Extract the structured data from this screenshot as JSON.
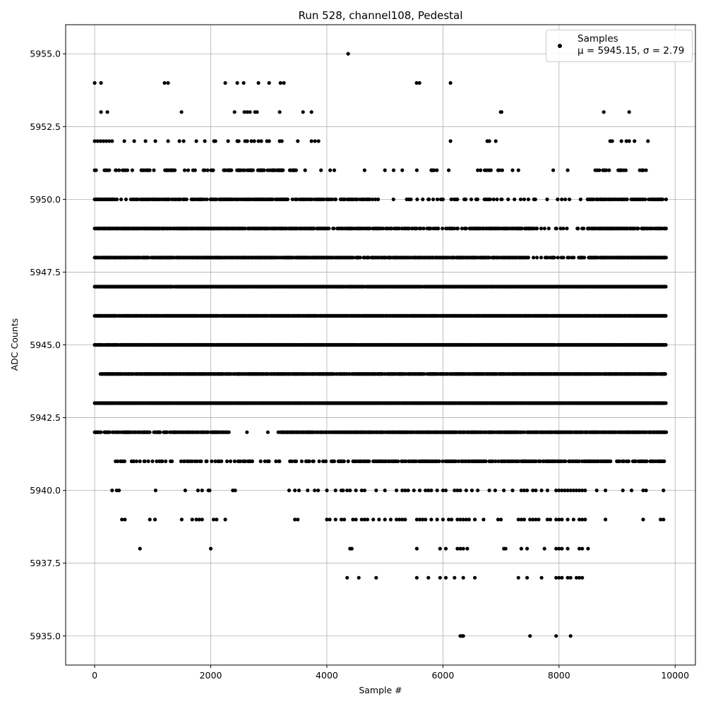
{
  "chart_data": {
    "type": "scatter",
    "title": "Run 528, channel108, Pedestal",
    "xlabel": "Sample #",
    "ylabel": "ADC Counts",
    "xlim": [
      -500,
      10350
    ],
    "ylim": [
      5934,
      5956
    ],
    "xticks": [
      "0",
      "2000",
      "4000",
      "6000",
      "8000",
      "10000"
    ],
    "xtick_values": [
      0,
      2000,
      4000,
      6000,
      8000,
      10000
    ],
    "yticks": [
      "5935.0",
      "5937.5",
      "5940.0",
      "5942.5",
      "5945.0",
      "5947.5",
      "5950.0",
      "5952.5",
      "5955.0"
    ],
    "ytick_values": [
      5935,
      5937.5,
      5940,
      5942.5,
      5945,
      5947.5,
      5950,
      5952.5,
      5955
    ],
    "grid": true,
    "legend_placement": "upper right",
    "marker_color": "#000000",
    "series": [
      {
        "name": "Samples",
        "annotation": "μ = 5945.15, σ = 2.79",
        "levels": [
          {
            "y": 5955,
            "points": [
              4367
            ]
          },
          {
            "y": 5954,
            "points": [
              0,
              110,
              1204,
              1265,
              2250,
              2457,
              2567,
              2822,
              3005,
              3200,
              3260,
              5547,
              5596,
              6131
            ]
          },
          {
            "y": 5953,
            "points": [
              110,
              219,
              1496,
              2409,
              2579,
              2628,
              2676,
              2762,
              2798,
              3187,
              3589,
              3735,
              6995,
              7010,
              8771,
              9209
            ]
          },
          {
            "y": 5952,
            "points": [
              0,
              50,
              100,
              150,
              200,
              250,
              300,
              511,
              681,
              876,
              1046,
              1265,
              1460,
              1533,
              1752,
              1898,
              2056,
              2081,
              2299,
              2457,
              2481,
              2591,
              2628,
              2700,
              2750,
              2822,
              2871,
              2968,
              3005,
              3187,
              3224,
              3499,
              3735,
              3796,
              3857,
              6131,
              6764,
              6800,
              6910,
              8881,
              8917,
              9075,
              9160,
              9209,
              9300,
              9532
            ]
          },
          {
            "y": 5951,
            "segments": [
              [
                0,
                1100,
                0.4
              ],
              [
                1200,
                1400,
                0.5
              ],
              [
                1550,
                2100,
                0.3
              ],
              [
                2200,
                3250,
                0.5
              ],
              [
                3350,
                3650,
                0.2
              ],
              [
                3900,
                4300,
                0.1
              ],
              [
                5800,
                5900,
                0.5
              ],
              [
                6600,
                6850,
                0.4
              ],
              [
                6950,
                7100,
                0.3
              ],
              [
                8600,
                9550,
                0.3
              ]
            ],
            "points": [
              4650,
              5000,
              5150,
              5300,
              5550,
              6100,
              7200,
              7300,
              7900,
              8150
            ]
          },
          {
            "y": 5950,
            "segments": [
              [
                0,
                300,
                0.9
              ],
              [
                300,
                2000,
                0.5
              ],
              [
                2000,
                3300,
                0.7
              ],
              [
                3300,
                4800,
                0.4
              ],
              [
                4800,
                6200,
                0.15
              ],
              [
                6200,
                7400,
                0.3
              ],
              [
                7400,
                8500,
                0.1
              ],
              [
                8500,
                9850,
                0.6
              ]
            ]
          },
          {
            "y": 5949,
            "segments": [
              [
                0,
                4000,
                0.8
              ],
              [
                4000,
                5500,
                0.5
              ],
              [
                5500,
                6500,
                0.35
              ],
              [
                6500,
                7500,
                0.6
              ],
              [
                7500,
                8500,
                0.25
              ],
              [
                8500,
                9850,
                0.8
              ]
            ]
          },
          {
            "y": 5948,
            "segments": [
              [
                0,
                4000,
                0.85
              ],
              [
                4000,
                5500,
                0.7
              ],
              [
                5500,
                6500,
                0.7
              ],
              [
                6500,
                7500,
                0.75
              ],
              [
                7500,
                8500,
                0.35
              ],
              [
                8500,
                9850,
                0.85
              ]
            ]
          },
          {
            "y": 5947,
            "segments": [
              [
                0,
                9850,
                0.95
              ]
            ]
          },
          {
            "y": 5946,
            "segments": [
              [
                0,
                9850,
                0.95
              ]
            ]
          },
          {
            "y": 5945,
            "segments": [
              [
                0,
                9850,
                0.95
              ]
            ]
          },
          {
            "y": 5944,
            "segments": [
              [
                100,
                9850,
                0.85
              ]
            ]
          },
          {
            "y": 5943,
            "segments": [
              [
                0,
                9850,
                0.95
              ]
            ]
          },
          {
            "y": 5942,
            "segments": [
              [
                0,
                2300,
                0.6
              ],
              [
                2300,
                3200,
                0.1
              ],
              [
                3200,
                9850,
                0.8
              ]
            ]
          },
          {
            "y": 5941,
            "segments": [
              [
                300,
                2500,
                0.2
              ],
              [
                2500,
                3900,
                0.25
              ],
              [
                3900,
                5000,
                0.45
              ],
              [
                5000,
                9850,
                0.55
              ]
            ]
          },
          {
            "y": 5940,
            "points": [
              300,
              380,
              420,
              1050,
              1560,
              1780,
              1850,
              1960,
              1980,
              2380,
              2420,
              3350,
              3450,
              3520,
              3670,
              3790,
              3850,
              4000,
              4150,
              4250,
              4280,
              4350,
              4400,
              4500,
              4600,
              4650,
              4850,
              5000,
              5200,
              5300,
              5350,
              5400,
              5500,
              5600,
              5700,
              5750,
              5800,
              5900,
              6000,
              6050,
              6200,
              6250,
              6300,
              6400,
              6500,
              6600,
              6800,
              6900,
              7050,
              7200,
              7350,
              7400,
              7450,
              7550,
              7600,
              7700,
              7800,
              7950,
              8000,
              8050,
              8100,
              8150,
              8200,
              8250,
              8300,
              8350,
              8400,
              8450,
              8650,
              8800,
              9100,
              9250,
              9450,
              9500,
              9800
            ]
          },
          {
            "y": 5939,
            "points": [
              470,
              520,
              950,
              1040,
              1500,
              1680,
              1750,
              1800,
              1850,
              2050,
              2100,
              2250,
              3450,
              3500,
              4000,
              4050,
              4150,
              4250,
              4300,
              4450,
              4500,
              4600,
              4650,
              4700,
              4800,
              4900,
              5000,
              5100,
              5200,
              5250,
              5300,
              5350,
              5550,
              5600,
              5650,
              5700,
              5800,
              5900,
              6000,
              6100,
              6150,
              6250,
              6300,
              6350,
              6400,
              6450,
              6550,
              6700,
              6950,
              7000,
              7300,
              7350,
              7400,
              7500,
              7550,
              7600,
              7650,
              7800,
              7850,
              7950,
              8000,
              8050,
              8150,
              8250,
              8350,
              8400,
              8450,
              8800,
              9450,
              9750,
              9800
            ]
          },
          {
            "y": 5938,
            "points": [
              780,
              2000,
              4400,
              4430,
              5550,
              5950,
              6050,
              6250,
              6300,
              6350,
              6420,
              7050,
              7080,
              7350,
              7450,
              7750,
              7950,
              8000,
              8050,
              8150,
              8350,
              8400,
              8500
            ]
          },
          {
            "y": 5937,
            "points": [
              4350,
              4550,
              4850,
              5550,
              5750,
              5950,
              6050,
              6200,
              6350,
              6550,
              7300,
              7450,
              7700,
              7950,
              8000,
              8050,
              8150,
              8200,
              8300,
              8350,
              8400
            ]
          },
          {
            "y": 5935,
            "points": [
              6300,
              6330,
              6350,
              7500,
              7950,
              8200
            ]
          }
        ]
      }
    ]
  }
}
